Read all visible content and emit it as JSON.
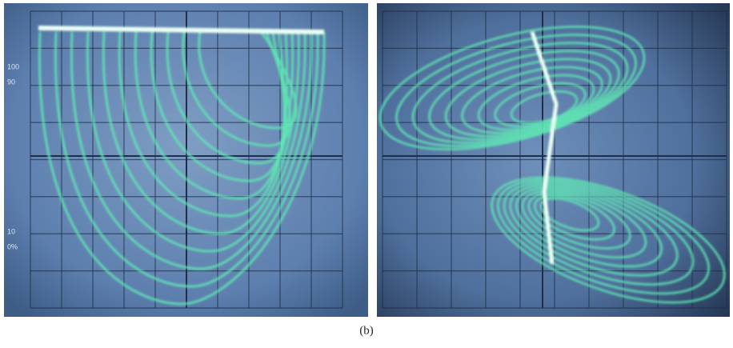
{
  "panels": [
    {
      "graticule_labels": [
        "100",
        "90",
        "10",
        "0%"
      ]
    },
    {
      "graticule_labels": []
    }
  ],
  "caption": "(b)"
}
